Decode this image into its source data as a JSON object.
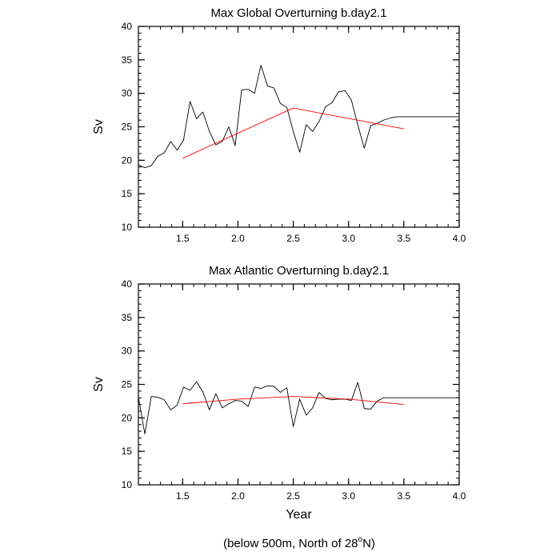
{
  "figure": {
    "footnote": {
      "prefix": "(below 500m, North of 28",
      "sup": "o",
      "suffix": "N)"
    }
  },
  "chart_data": [
    {
      "type": "line",
      "title": "Max Global Overturning b.day2.1",
      "xlabel": "",
      "ylabel": "Sv",
      "xlim": [
        1.1,
        4.0
      ],
      "ylim": [
        10,
        40
      ],
      "x_ticks": [
        "1.5",
        "2.0",
        "2.5",
        "3.0",
        "3.5",
        "4.0"
      ],
      "y_ticks": [
        "10",
        "15",
        "20",
        "25",
        "30",
        "35",
        "40"
      ],
      "series": [
        {
          "color": "#000000",
          "x": [
            1.1,
            1.158,
            1.217,
            1.275,
            1.333,
            1.392,
            1.45,
            1.508,
            1.567,
            1.625,
            1.683,
            1.742,
            1.8,
            1.858,
            1.917,
            1.975,
            2.033,
            2.092,
            2.15,
            2.208,
            2.267,
            2.325,
            2.383,
            2.442,
            2.5,
            2.558,
            2.617,
            2.675,
            2.733,
            2.792,
            2.85,
            2.908,
            2.967,
            3.025,
            3.083,
            3.142,
            3.2,
            3.258,
            3.317,
            3.375,
            3.433,
            3.492,
            3.55,
            3.608,
            3.667,
            3.725,
            3.783,
            3.842,
            3.9,
            3.958,
            4.0
          ],
          "y": [
            19.3,
            18.9,
            19.2,
            20.6,
            21.1,
            22.8,
            21.5,
            23.0,
            28.8,
            26.2,
            27.2,
            24.3,
            22.3,
            22.8,
            25.0,
            22.2,
            30.5,
            30.6,
            30.0,
            34.2,
            31.1,
            30.8,
            28.5,
            27.9,
            24.3,
            21.2,
            25.3,
            24.3,
            25.8,
            28.0,
            28.6,
            30.2,
            30.4,
            29.0,
            25.3,
            21.8,
            25.2,
            25.5,
            26.0,
            26.3,
            26.5,
            26.5,
            26.5,
            26.5,
            26.5,
            26.5,
            26.5,
            26.5,
            26.5,
            26.5,
            26.5
          ]
        },
        {
          "color": "#ff0000",
          "x": [
            1.5,
            2.5,
            3.5
          ],
          "y": [
            20.3,
            27.8,
            24.7
          ]
        }
      ]
    },
    {
      "type": "line",
      "title": "Max Atlantic Overturning b.day2.1",
      "xlabel": "Year",
      "ylabel": "Sv",
      "xlim": [
        1.1,
        4.0
      ],
      "ylim": [
        10,
        40
      ],
      "x_ticks": [
        "1.5",
        "2.0",
        "2.5",
        "3.0",
        "3.5",
        "4.0"
      ],
      "y_ticks": [
        "10",
        "15",
        "20",
        "25",
        "30",
        "35",
        "40"
      ],
      "series": [
        {
          "color": "#000000",
          "x": [
            1.1,
            1.158,
            1.217,
            1.275,
            1.333,
            1.392,
            1.45,
            1.508,
            1.567,
            1.625,
            1.683,
            1.742,
            1.8,
            1.858,
            1.917,
            1.975,
            2.033,
            2.092,
            2.15,
            2.208,
            2.267,
            2.325,
            2.383,
            2.442,
            2.5,
            2.558,
            2.617,
            2.675,
            2.733,
            2.792,
            2.85,
            2.908,
            2.967,
            3.025,
            3.083,
            3.142,
            3.2,
            3.258,
            3.317,
            3.375,
            3.433,
            3.492,
            3.55,
            3.608,
            3.667,
            3.725,
            3.783,
            3.842,
            3.9,
            3.958,
            4.0
          ],
          "y": [
            23.1,
            17.6,
            23.2,
            23.1,
            22.7,
            21.2,
            21.9,
            24.6,
            24.1,
            25.4,
            23.9,
            21.2,
            23.6,
            21.5,
            22.1,
            22.6,
            22.5,
            21.7,
            24.6,
            24.4,
            24.8,
            24.7,
            23.8,
            24.5,
            18.7,
            22.8,
            20.4,
            21.5,
            23.8,
            22.9,
            22.7,
            22.8,
            22.8,
            22.6,
            25.3,
            21.4,
            21.3,
            22.5,
            23.0,
            23.0,
            23.0,
            23.0,
            23.0,
            23.0,
            23.0,
            23.0,
            23.0,
            23.0,
            23.0,
            23.0,
            23.0
          ]
        },
        {
          "color": "#ff0000",
          "x": [
            1.5,
            2.0,
            2.5,
            3.0,
            3.5
          ],
          "y": [
            22.1,
            22.8,
            23.2,
            22.8,
            22.0
          ]
        }
      ]
    }
  ]
}
